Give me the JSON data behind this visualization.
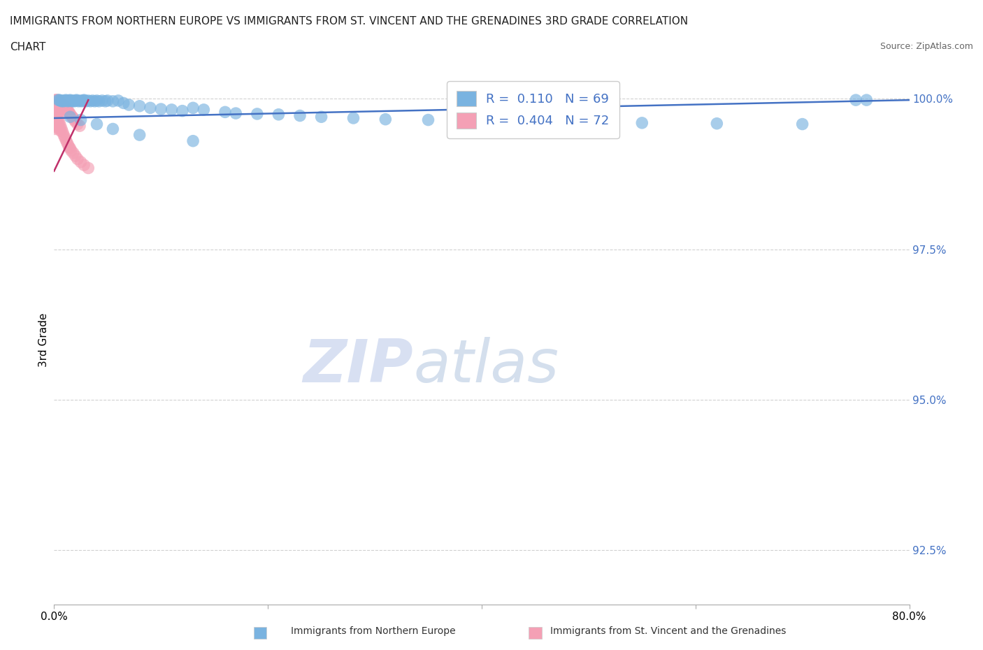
{
  "title_line1": "IMMIGRANTS FROM NORTHERN EUROPE VS IMMIGRANTS FROM ST. VINCENT AND THE GRENADINES 3RD GRADE CORRELATION",
  "title_line2": "CHART",
  "source": "Source: ZipAtlas.com",
  "xlabel_bottom": [
    "Immigrants from Northern Europe",
    "Immigrants from St. Vincent and the Grenadines"
  ],
  "ylabel": "3rd Grade",
  "xmin": 0.0,
  "xmax": 0.8,
  "ymin": 0.916,
  "ymax": 1.004,
  "yticks": [
    0.925,
    0.95,
    0.975,
    1.0
  ],
  "ytick_labels": [
    "92.5%",
    "95.0%",
    "97.5%",
    "100.0%"
  ],
  "xticks": [
    0.0,
    0.2,
    0.4,
    0.6,
    0.8
  ],
  "xtick_labels": [
    "0.0%",
    "",
    "",
    "",
    "80.0%"
  ],
  "legend_R1": "0.110",
  "legend_N1": "69",
  "legend_R2": "0.404",
  "legend_N2": "72",
  "blue_color": "#7ab3e0",
  "pink_color": "#f4a0b5",
  "trend_blue": "#4472c4",
  "trend_pink": "#c0306a",
  "watermark_zip": "ZIP",
  "watermark_atlas": "atlas",
  "blue_scatter_x": [
    0.004,
    0.005,
    0.006,
    0.007,
    0.008,
    0.009,
    0.01,
    0.011,
    0.012,
    0.013,
    0.014,
    0.015,
    0.016,
    0.017,
    0.018,
    0.019,
    0.02,
    0.021,
    0.022,
    0.023,
    0.025,
    0.026,
    0.027,
    0.028,
    0.029,
    0.03,
    0.032,
    0.034,
    0.036,
    0.038,
    0.04,
    0.042,
    0.045,
    0.048,
    0.05,
    0.055,
    0.06,
    0.065,
    0.07,
    0.08,
    0.09,
    0.1,
    0.11,
    0.12,
    0.13,
    0.14,
    0.16,
    0.17,
    0.19,
    0.21,
    0.23,
    0.25,
    0.28,
    0.31,
    0.35,
    0.39,
    0.43,
    0.48,
    0.55,
    0.62,
    0.7,
    0.75,
    0.76,
    0.015,
    0.025,
    0.04,
    0.055,
    0.08,
    0.13
  ],
  "blue_scatter_y": [
    0.9998,
    0.9998,
    0.9997,
    0.9996,
    0.9997,
    0.9996,
    0.9997,
    0.9998,
    0.9997,
    0.9996,
    0.9997,
    0.9998,
    0.9997,
    0.9996,
    0.9997,
    0.9996,
    0.9997,
    0.9998,
    0.9997,
    0.9996,
    0.9997,
    0.9996,
    0.9997,
    0.9998,
    0.9997,
    0.9996,
    0.9997,
    0.9996,
    0.9997,
    0.9996,
    0.9997,
    0.9996,
    0.9997,
    0.9996,
    0.9997,
    0.9996,
    0.9997,
    0.9993,
    0.999,
    0.9988,
    0.9985,
    0.9983,
    0.9982,
    0.998,
    0.9985,
    0.9982,
    0.9978,
    0.9976,
    0.9975,
    0.9974,
    0.9972,
    0.997,
    0.9968,
    0.9966,
    0.9965,
    0.9963,
    0.9962,
    0.9961,
    0.996,
    0.9959,
    0.9958,
    0.9998,
    0.9998,
    0.997,
    0.9965,
    0.9958,
    0.995,
    0.994,
    0.993
  ],
  "pink_scatter_x": [
    0.001,
    0.001,
    0.001,
    0.002,
    0.002,
    0.002,
    0.002,
    0.003,
    0.003,
    0.003,
    0.003,
    0.004,
    0.004,
    0.004,
    0.005,
    0.005,
    0.005,
    0.006,
    0.006,
    0.006,
    0.007,
    0.007,
    0.008,
    0.008,
    0.009,
    0.009,
    0.01,
    0.01,
    0.011,
    0.012,
    0.013,
    0.014,
    0.015,
    0.016,
    0.017,
    0.018,
    0.019,
    0.02,
    0.022,
    0.024,
    0.001,
    0.001,
    0.001,
    0.001,
    0.002,
    0.002,
    0.002,
    0.003,
    0.003,
    0.003,
    0.004,
    0.004,
    0.005,
    0.005,
    0.006,
    0.006,
    0.007,
    0.008,
    0.009,
    0.01,
    0.011,
    0.012,
    0.013,
    0.014,
    0.015,
    0.016,
    0.018,
    0.02,
    0.022,
    0.025,
    0.028,
    0.032
  ],
  "pink_scatter_y": [
    0.9998,
    0.9992,
    0.9985,
    0.9998,
    0.9992,
    0.9985,
    0.9978,
    0.9998,
    0.9992,
    0.9985,
    0.9978,
    0.9995,
    0.9988,
    0.998,
    0.9995,
    0.9988,
    0.998,
    0.9995,
    0.9988,
    0.998,
    0.9992,
    0.9985,
    0.999,
    0.9983,
    0.999,
    0.9983,
    0.9988,
    0.998,
    0.9985,
    0.9982,
    0.998,
    0.9978,
    0.9975,
    0.9972,
    0.997,
    0.9968,
    0.9965,
    0.9962,
    0.9958,
    0.9955,
    0.9975,
    0.9968,
    0.996,
    0.995,
    0.9972,
    0.9963,
    0.9955,
    0.9968,
    0.996,
    0.9952,
    0.9965,
    0.9957,
    0.996,
    0.9952,
    0.9955,
    0.9947,
    0.995,
    0.9945,
    0.994,
    0.9936,
    0.9932,
    0.9928,
    0.9924,
    0.992,
    0.9918,
    0.9914,
    0.991,
    0.9905,
    0.99,
    0.9895,
    0.989,
    0.9885
  ],
  "blue_trend_x": [
    0.0,
    0.8
  ],
  "blue_trend_y": [
    0.9968,
    0.9998
  ],
  "pink_trend_x": [
    0.0,
    0.032
  ],
  "pink_trend_y": [
    0.988,
    0.9998
  ]
}
